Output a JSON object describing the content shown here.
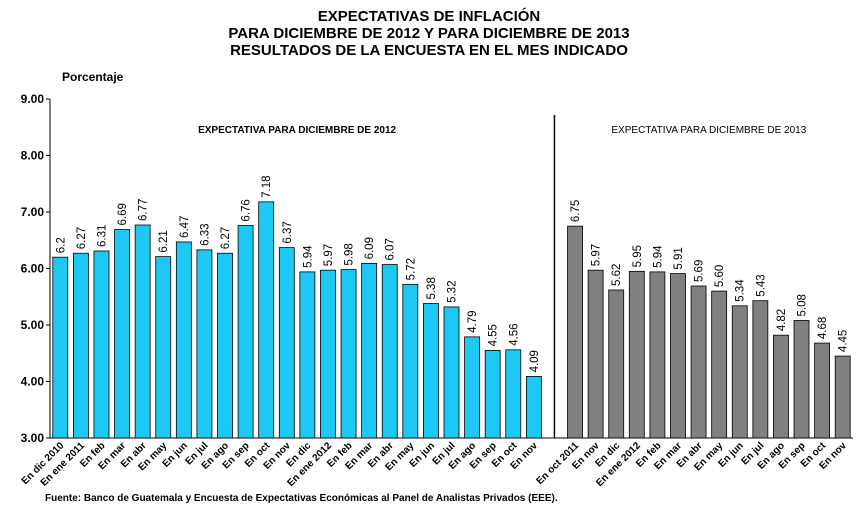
{
  "chart_data": {
    "type": "bar",
    "title": [
      "EXPECTATIVAS  DE INFLACIÓN",
      "PARA DICIEMBRE  DE 2012 Y PARA DICIEMBRE  DE 2013",
      "RESULTADOS  DE LA ENCUESTA  EN EL MES INDICADO"
    ],
    "y_label": "Porcentaje",
    "source": "Fuente: Banco de Guatemala y Encuesta  de Expectativas Económicas  al Panel de Analistas Privados (EEE).",
    "categories": [
      "En dic 2010",
      "En ene 2011",
      "En feb",
      "En mar",
      "En abr",
      "En may",
      "En jun",
      "En jul",
      "En ago",
      "En sep",
      "En oct",
      "En nov",
      "En dic",
      "En ene 2012",
      "En feb",
      "En mar",
      "En abr",
      "En may",
      "En jun",
      "En jul",
      "En ago",
      "En sep",
      "En oct",
      "En nov",
      null,
      "En oct 2011",
      "En nov",
      "En dic",
      "En ene 2012",
      "En feb",
      "En mar",
      "En abr",
      "En may",
      "En jun",
      "En jul",
      "En ago",
      "En sep",
      "En oct",
      "En nov"
    ],
    "series": [
      {
        "name": "EXPECTATIVA  PARA  DICIEMBRE  DE 2012",
        "color": "#1ec8f5",
        "values": [
          6.2,
          6.27,
          6.31,
          6.69,
          6.77,
          6.21,
          6.47,
          6.33,
          6.27,
          6.76,
          7.18,
          6.37,
          5.94,
          5.97,
          5.98,
          6.09,
          6.07,
          5.72,
          5.38,
          5.32,
          4.79,
          4.55,
          4.56,
          4.09,
          null,
          null,
          null,
          null,
          null,
          null,
          null,
          null,
          null,
          null,
          null,
          null,
          null,
          null,
          null
        ],
        "value_labels": [
          "6.2",
          "6.27",
          "6.31",
          "6.69",
          "6.77",
          "6.21",
          "6.47",
          "6.33",
          "6.27",
          "6.76",
          "7.18",
          "6.37",
          "5.94",
          "5.97",
          "5.98",
          "6.09",
          "6.07",
          "5.72",
          "5.38",
          "5.32",
          "4.79",
          "4.55",
          "4.56",
          "4.09",
          null,
          null,
          null,
          null,
          null,
          null,
          null,
          null,
          null,
          null,
          null,
          null,
          null,
          null,
          null
        ]
      },
      {
        "name": "EXPECTATIVA  PARA  DICIEMBRE  DE 2013",
        "color": "#808080",
        "values": [
          null,
          null,
          null,
          null,
          null,
          null,
          null,
          null,
          null,
          null,
          null,
          null,
          null,
          null,
          null,
          null,
          null,
          null,
          null,
          null,
          null,
          null,
          null,
          null,
          null,
          6.75,
          5.97,
          5.62,
          5.95,
          5.94,
          5.91,
          5.69,
          5.6,
          5.34,
          5.43,
          4.82,
          5.08,
          4.68,
          4.45
        ],
        "value_labels": [
          null,
          null,
          null,
          null,
          null,
          null,
          null,
          null,
          null,
          null,
          null,
          null,
          null,
          null,
          null,
          null,
          null,
          null,
          null,
          null,
          null,
          null,
          null,
          null,
          null,
          "6.75",
          "5.97",
          "5.62",
          "5.95",
          "5.94",
          "5.91",
          "5.69",
          "5.60",
          "5.34",
          "5.43",
          "4.82",
          "5.08",
          "4.68",
          "4.45"
        ]
      }
    ],
    "ylim": [
      3,
      9
    ],
    "yticks": [
      {
        "value": 3,
        "label": "3.00"
      },
      {
        "value": 4,
        "label": "4.00"
      },
      {
        "value": 5,
        "label": "5.00"
      },
      {
        "value": 6,
        "label": "6.00"
      },
      {
        "value": 7,
        "label": "7.00"
      },
      {
        "value": 8,
        "label": "8.00"
      },
      {
        "value": 9,
        "label": "9.00"
      }
    ]
  }
}
